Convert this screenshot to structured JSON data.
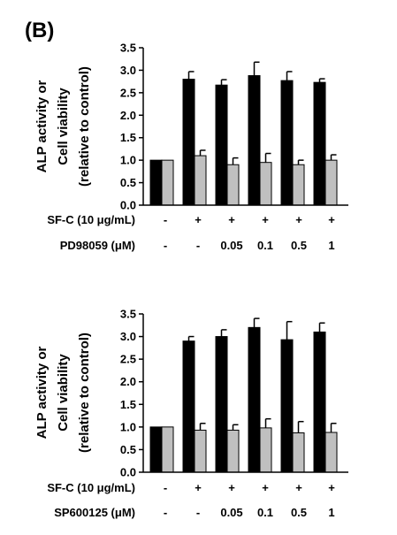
{
  "panel_label": "(B)",
  "chart_data": [
    {
      "type": "bar",
      "ylabel": [
        "ALP activity or",
        "Cell viability",
        "(relative to control)"
      ],
      "ylim": [
        0,
        3.5
      ],
      "yticks": [
        "0.0",
        "0.5",
        "1.0",
        "1.5",
        "2.0",
        "2.5",
        "3.0",
        "3.5"
      ],
      "conditions": [
        {
          "label": "SF-C (10 μg/mL)",
          "values": [
            "-",
            "+",
            "+",
            "+",
            "+",
            "+"
          ]
        },
        {
          "label": "PD98059 (μM)",
          "values": [
            "-",
            "-",
            "0.05",
            "0.1",
            "0.5",
            "1"
          ]
        }
      ],
      "series": [
        {
          "color": "#000000",
          "values": [
            1.0,
            2.8,
            2.67,
            2.88,
            2.77,
            2.73
          ],
          "errors": [
            0,
            0.17,
            0.12,
            0.3,
            0.2,
            0.08
          ]
        },
        {
          "color": "#c0c0c0",
          "values": [
            1.0,
            1.1,
            0.9,
            0.95,
            0.9,
            1.0
          ],
          "errors": [
            0,
            0.12,
            0.15,
            0.2,
            0.1,
            0.12
          ]
        }
      ]
    },
    {
      "type": "bar",
      "ylabel": [
        "ALP activity or",
        "Cell viability",
        "(relative to control)"
      ],
      "ylim": [
        0,
        3.5
      ],
      "yticks": [
        "0.0",
        "0.5",
        "1.0",
        "1.5",
        "2.0",
        "2.5",
        "3.0",
        "3.5"
      ],
      "conditions": [
        {
          "label": "SF-C (10 μg/mL)",
          "values": [
            "-",
            "+",
            "+",
            "+",
            "+",
            "+"
          ]
        },
        {
          "label": "SP600125 (μM)",
          "values": [
            "-",
            "-",
            "0.05",
            "0.1",
            "0.5",
            "1"
          ]
        }
      ],
      "series": [
        {
          "color": "#000000",
          "values": [
            1.0,
            2.9,
            3.0,
            3.2,
            2.93,
            3.1
          ],
          "errors": [
            0,
            0.1,
            0.15,
            0.2,
            0.4,
            0.2
          ]
        },
        {
          "color": "#c0c0c0",
          "values": [
            1.0,
            0.93,
            0.93,
            0.98,
            0.87,
            0.88
          ],
          "errors": [
            0,
            0.15,
            0.12,
            0.2,
            0.25,
            0.2
          ]
        }
      ]
    }
  ]
}
